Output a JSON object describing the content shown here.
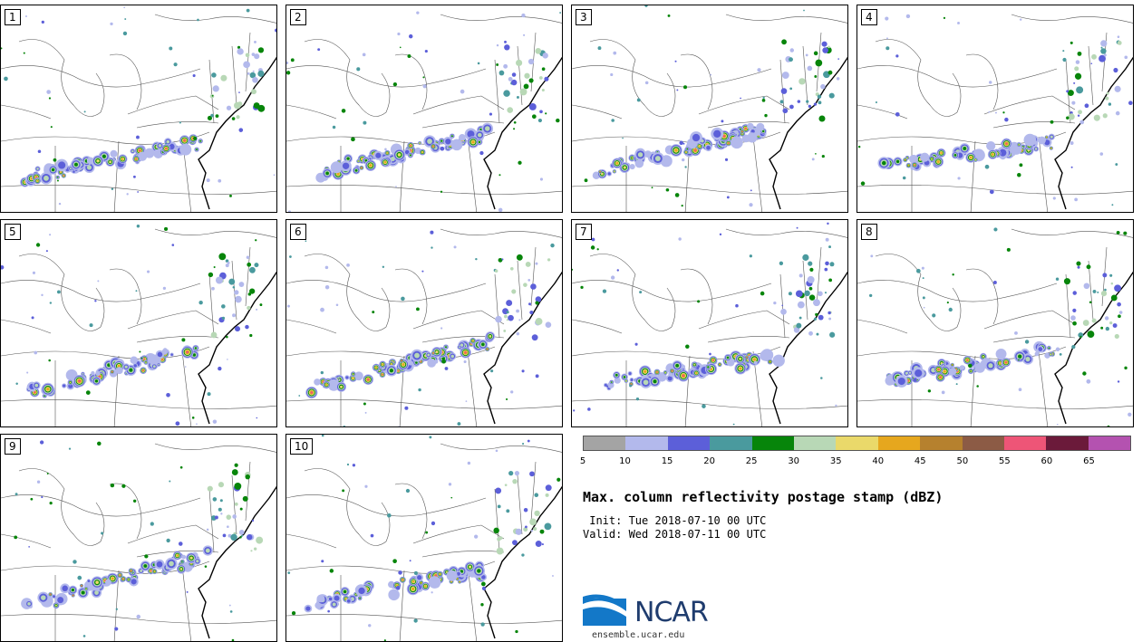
{
  "panels": [
    {
      "label": "1"
    },
    {
      "label": "2"
    },
    {
      "label": "3"
    },
    {
      "label": "4"
    },
    {
      "label": "5"
    },
    {
      "label": "6"
    },
    {
      "label": "7"
    },
    {
      "label": "8"
    },
    {
      "label": "9"
    },
    {
      "label": "10"
    }
  ],
  "colorbar": {
    "ticks": [
      "5",
      "10",
      "15",
      "20",
      "25",
      "30",
      "35",
      "40",
      "45",
      "50",
      "55",
      "60",
      "65"
    ],
    "colors": [
      "#a4a4a4",
      "#b3b9ec",
      "#5c5fd9",
      "#4a9a9e",
      "#07850a",
      "#b8d8b6",
      "#ead96a",
      "#e6a71e",
      "#b6812e",
      "#8c5b45",
      "#ee5577",
      "#6b1a3a",
      "#b452b0"
    ]
  },
  "title": "Max. column reflectivity postage stamp (dBZ)",
  "init": " Init: Tue 2018-07-10 00 UTC",
  "valid": "Valid: Wed 2018-07-11 00 UTC",
  "logo": {
    "text": "NCAR",
    "url": "ensemble.ucar.edu"
  }
}
